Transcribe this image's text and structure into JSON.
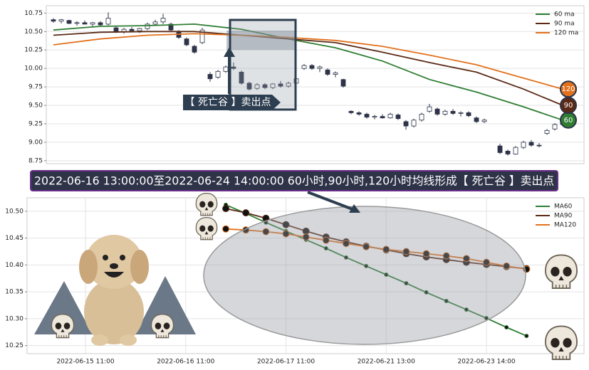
{
  "chart_data": [
    {
      "type": "candlestick",
      "annotation": "【 死亡谷 】卖出点",
      "ylim": [
        8.71,
        10.85
      ],
      "yticks": [
        8.75,
        {
          "value": 9,
          "label": "9.00"
        },
        9.25,
        {
          "value": 9.5,
          "label": "9.50"
        },
        9.75,
        {
          "value": 10,
          "label": "10.00"
        },
        10.25,
        {
          "value": 10.5,
          "label": "10.50"
        },
        10.75
      ],
      "grid": true,
      "legend": "upper right",
      "candles": [
        [
          10.66,
          10.68,
          10.62,
          10.64
        ],
        [
          10.64,
          10.67,
          10.61,
          10.66
        ],
        [
          10.65,
          10.66,
          10.6,
          10.61
        ],
        [
          10.61,
          10.64,
          10.58,
          10.62
        ],
        [
          10.62,
          10.65,
          10.6,
          10.6
        ],
        [
          10.6,
          10.63,
          10.57,
          10.62
        ],
        [
          10.62,
          10.64,
          10.58,
          10.59
        ],
        [
          10.6,
          10.76,
          10.58,
          10.68
        ],
        [
          10.55,
          10.58,
          10.48,
          10.5
        ],
        [
          10.5,
          10.55,
          10.47,
          10.53
        ],
        [
          10.53,
          10.56,
          10.49,
          10.51
        ],
        [
          10.51,
          10.55,
          10.48,
          10.54
        ],
        [
          10.54,
          10.62,
          10.52,
          10.6
        ],
        [
          10.6,
          10.66,
          10.58,
          10.63
        ],
        [
          10.63,
          10.74,
          10.6,
          10.68
        ],
        [
          10.6,
          10.62,
          10.5,
          10.52
        ],
        [
          10.5,
          10.52,
          10.4,
          10.42
        ],
        [
          10.4,
          10.42,
          10.3,
          10.32
        ],
        [
          10.3,
          10.32,
          10.2,
          10.22
        ],
        [
          10.35,
          10.55,
          10.33,
          10.52
        ],
        [
          9.92,
          9.95,
          9.82,
          9.86
        ],
        [
          9.88,
          9.98,
          9.86,
          9.96
        ],
        [
          9.96,
          10.04,
          9.94,
          10.02
        ],
        [
          10.02,
          10.08,
          9.98,
          10.0
        ],
        [
          9.95,
          9.97,
          9.78,
          9.8
        ],
        [
          9.8,
          9.82,
          9.7,
          9.72
        ],
        [
          9.73,
          9.8,
          9.71,
          9.78
        ],
        [
          9.78,
          9.8,
          9.72,
          9.74
        ],
        [
          9.74,
          9.8,
          9.72,
          9.79
        ],
        [
          9.79,
          9.83,
          9.74,
          9.76
        ],
        [
          9.76,
          9.82,
          9.74,
          9.8
        ],
        [
          9.8,
          9.88,
          9.78,
          9.86
        ],
        [
          10.0,
          10.06,
          9.98,
          10.04
        ],
        [
          10.04,
          10.06,
          9.98,
          10.0
        ],
        [
          10.0,
          10.04,
          9.95,
          10.02
        ],
        [
          9.98,
          10.0,
          9.9,
          9.92
        ],
        [
          9.92,
          9.96,
          9.88,
          9.94
        ],
        [
          9.85,
          9.86,
          9.74,
          9.76
        ],
        [
          9.42,
          9.43,
          9.38,
          9.4
        ],
        [
          9.4,
          9.42,
          9.36,
          9.38
        ],
        [
          9.38,
          9.4,
          9.32,
          9.34
        ],
        [
          9.34,
          9.37,
          9.31,
          9.35
        ],
        [
          9.35,
          9.38,
          9.32,
          9.33
        ],
        [
          9.33,
          9.4,
          9.32,
          9.38
        ],
        [
          9.37,
          9.39,
          9.3,
          9.32
        ],
        [
          9.28,
          9.3,
          9.17,
          9.22
        ],
        [
          9.22,
          9.32,
          9.2,
          9.3
        ],
        [
          9.3,
          9.4,
          9.28,
          9.38
        ],
        [
          9.42,
          9.52,
          9.4,
          9.48
        ],
        [
          9.45,
          9.47,
          9.36,
          9.38
        ],
        [
          9.38,
          9.44,
          9.36,
          9.42
        ],
        [
          9.42,
          9.45,
          9.37,
          9.39
        ],
        [
          9.39,
          9.42,
          9.35,
          9.4
        ],
        [
          9.4,
          9.42,
          9.34,
          9.36
        ],
        [
          9.33,
          9.35,
          9.26,
          9.28
        ],
        [
          9.28,
          9.32,
          9.26,
          9.3
        ],
        null,
        [
          8.95,
          8.98,
          8.84,
          8.86
        ],
        [
          8.88,
          8.9,
          8.82,
          8.84
        ],
        [
          8.84,
          8.95,
          8.83,
          8.93
        ],
        [
          8.93,
          9.02,
          8.91,
          9.0
        ],
        [
          9.0,
          9.03,
          8.94,
          8.96
        ],
        [
          8.96,
          8.99,
          8.93,
          8.95
        ],
        [
          9.12,
          9.18,
          9.1,
          9.16
        ],
        [
          9.18,
          9.26,
          9.16,
          9.24
        ],
        [
          9.24,
          9.32,
          9.22,
          9.3
        ]
      ],
      "series": [
        {
          "name": "60 ma",
          "color": "#2e7d32",
          "badge": "60",
          "x": [
            0,
            6,
            12,
            18,
            24,
            30,
            36,
            42,
            48,
            54,
            60,
            65
          ],
          "values": [
            10.52,
            10.57,
            10.58,
            10.6,
            10.53,
            10.4,
            10.28,
            10.1,
            9.85,
            9.68,
            9.48,
            9.3
          ]
        },
        {
          "name": "90 ma",
          "color": "#5b2a16",
          "badge": "90",
          "x": [
            0,
            6,
            12,
            18,
            24,
            30,
            36,
            42,
            48,
            54,
            60,
            65
          ],
          "values": [
            10.45,
            10.49,
            10.5,
            10.5,
            10.45,
            10.4,
            10.35,
            10.22,
            10.08,
            9.95,
            9.72,
            9.5
          ]
        },
        {
          "name": "120 ma",
          "color": "#e2711d",
          "badge": "120",
          "x": [
            0,
            6,
            12,
            18,
            24,
            30,
            36,
            42,
            48,
            54,
            60,
            65
          ],
          "values": [
            10.32,
            10.4,
            10.45,
            10.47,
            10.45,
            10.42,
            10.38,
            10.3,
            10.18,
            10.05,
            9.87,
            9.72
          ]
        }
      ]
    },
    {
      "type": "line",
      "title": "2022-06-16 13:00:00至2022-06-24 14:00:00 60小时,90小时,120小时均线形成【 死亡谷 】卖出点",
      "categories": [
        "2022-06-15 11:00",
        null,
        null,
        null,
        null,
        "2022-06-16 11:00",
        null,
        null,
        null,
        null,
        "2022-06-17 11:00",
        null,
        null,
        null,
        null,
        "2022-06-21 13:00",
        null,
        null,
        null,
        null,
        "2022-06-23 14:00",
        null,
        null
      ],
      "ylim": [
        10.235,
        10.525
      ],
      "yticks": [
        10.25,
        {
          "value": 10.3,
          "label": "10.30"
        },
        10.35,
        {
          "value": 10.4,
          "label": "10.40"
        },
        10.45,
        {
          "value": 10.5,
          "label": "10.50"
        }
      ],
      "grid": true,
      "legend": "upper right",
      "series": [
        {
          "name": "MA60",
          "color": "#2e7d32",
          "values": [
            null,
            null,
            null,
            null,
            null,
            null,
            null,
            10.512,
            10.496,
            10.479,
            10.463,
            10.447,
            10.431,
            10.414,
            10.398,
            10.382,
            10.366,
            10.349,
            10.333,
            10.317,
            10.301,
            10.284,
            10.268
          ]
        },
        {
          "name": "MA90",
          "color": "#5b2a16",
          "values": [
            null,
            null,
            null,
            null,
            null,
            null,
            null,
            10.505,
            10.497,
            10.487,
            10.475,
            10.463,
            10.452,
            10.443,
            10.435,
            10.428,
            10.421,
            10.415,
            10.41,
            10.405,
            10.401,
            10.397,
            10.393
          ]
        },
        {
          "name": "MA120",
          "color": "#e2711d",
          "values": [
            null,
            null,
            null,
            null,
            null,
            null,
            null,
            10.467,
            10.465,
            10.462,
            10.458,
            10.452,
            10.446,
            10.44,
            10.434,
            10.429,
            10.425,
            10.421,
            10.417,
            10.412,
            10.405,
            10.398,
            10.392
          ]
        }
      ]
    }
  ]
}
